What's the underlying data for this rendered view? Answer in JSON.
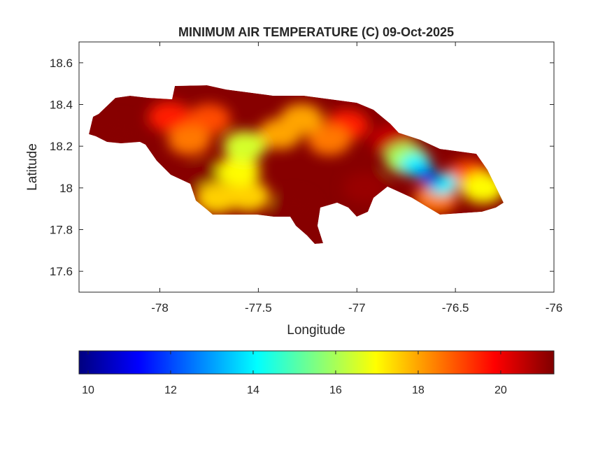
{
  "chart_data": {
    "type": "heatmap",
    "title": "MINIMUM AIR TEMPERATURE (C) 09-Oct-2025",
    "xlabel": "Longitude",
    "ylabel": "Latitude",
    "xlim": [
      -78.41,
      -76
    ],
    "ylim": [
      17.5,
      18.7
    ],
    "xticks": [
      -78,
      -77.5,
      -77,
      -76.5,
      -76
    ],
    "xtick_labels": [
      "-78",
      "-77.5",
      "-77",
      "-76.5",
      "-76"
    ],
    "yticks": [
      17.6,
      17.8,
      18,
      18.2,
      18.4,
      18.6
    ],
    "ytick_labels": [
      "17.6",
      "17.8",
      "18",
      "18.2",
      "18.4",
      "18.6"
    ],
    "grid": false,
    "colormap": "jet",
    "colorbar": {
      "location": "bottom",
      "range": [
        9.78,
        21.29
      ],
      "ticks": [
        10,
        12,
        14,
        16,
        18,
        20
      ],
      "tick_labels": [
        "10",
        "12",
        "14",
        "16",
        "18",
        "20"
      ]
    },
    "background_value": 21.2,
    "samples": [
      {
        "lon": -76.62,
        "lat": 18.04,
        "value": 10.8
      },
      {
        "lon": -76.66,
        "lat": 18.07,
        "value": 12.5
      },
      {
        "lon": -76.7,
        "lat": 18.11,
        "value": 14
      },
      {
        "lon": -76.57,
        "lat": 18.02,
        "value": 14
      },
      {
        "lon": -76.75,
        "lat": 18.14,
        "value": 16
      },
      {
        "lon": -76.36,
        "lat": 18.0,
        "value": 17
      },
      {
        "lon": -76.43,
        "lat": 18.06,
        "value": 19
      },
      {
        "lon": -76.6,
        "lat": 17.95,
        "value": 18.5
      },
      {
        "lon": -77.6,
        "lat": 18.08,
        "value": 17
      },
      {
        "lon": -77.57,
        "lat": 18.2,
        "value": 16.5
      },
      {
        "lon": -77.55,
        "lat": 17.96,
        "value": 17.5
      },
      {
        "lon": -77.71,
        "lat": 17.95,
        "value": 17.5
      },
      {
        "lon": -77.39,
        "lat": 18.26,
        "value": 18
      },
      {
        "lon": -77.28,
        "lat": 18.33,
        "value": 18
      },
      {
        "lon": -77.14,
        "lat": 18.23,
        "value": 18.5
      },
      {
        "lon": -77.85,
        "lat": 18.23,
        "value": 18.5
      },
      {
        "lon": -77.75,
        "lat": 18.33,
        "value": 19
      },
      {
        "lon": -77.95,
        "lat": 18.34,
        "value": 19.5
      },
      {
        "lon": -77.05,
        "lat": 18.3,
        "value": 19.5
      },
      {
        "lon": -78.21,
        "lat": 18.26,
        "value": 21.2
      },
      {
        "lon": -77.75,
        "lat": 18.06,
        "value": 21.2
      },
      {
        "lon": -77.32,
        "lat": 17.9,
        "value": 21.2
      },
      {
        "lon": -76.96,
        "lat": 18.0,
        "value": 21
      },
      {
        "lon": -76.82,
        "lat": 18.23,
        "value": 20.5
      }
    ]
  }
}
